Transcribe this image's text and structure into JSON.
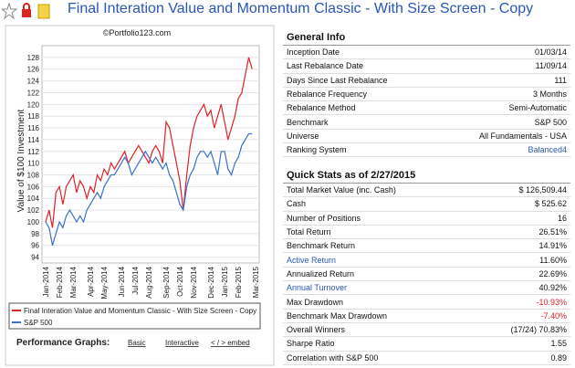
{
  "header": {
    "title": "Final Interation Value and Momentum Classic - With Size Screen - Copy"
  },
  "chart_data": {
    "type": "line",
    "credit": "©Portfolio123.com",
    "ylabel": "Value of $100 Investment",
    "categories": [
      "Jan-2014",
      null,
      null,
      null,
      "Feb-2014",
      null,
      null,
      null,
      "Mar-2014",
      null,
      null,
      null,
      null,
      "Apr-2014",
      null,
      null,
      null,
      "May-2014",
      null,
      null,
      null,
      null,
      "Jun-2014",
      null,
      null,
      null,
      "Jul-2014",
      null,
      null,
      null,
      "Aug-2014",
      null,
      null,
      null,
      null,
      "Sep-2014",
      null,
      null,
      null,
      "Oct-2014",
      null,
      null,
      null,
      "Nov-2014",
      null,
      null,
      null,
      null,
      "Dec-2014",
      null,
      null,
      null,
      "Jan-2015",
      null,
      null,
      null,
      "Feb-2015",
      null,
      null,
      null,
      null,
      "Mar-2015"
    ],
    "series": [
      {
        "name": "Final Interation Value and Momentum Classic - With Size Screen - Copy",
        "color": "#e0202a",
        "values": [
          100,
          102,
          99,
          105,
          106,
          103,
          106,
          107,
          108,
          105,
          107,
          106,
          104,
          106,
          105,
          108,
          107,
          109,
          108,
          110,
          109,
          110,
          111,
          112,
          110,
          111,
          112,
          113,
          112,
          111,
          110,
          112,
          113,
          112,
          110,
          117,
          116,
          113,
          110,
          107,
          102,
          108,
          113,
          116,
          118,
          119,
          120,
          118,
          119,
          116,
          118,
          120,
          117,
          114,
          116,
          118,
          121,
          122,
          125,
          128,
          126,
          null
        ]
      },
      {
        "name": "S&P 500",
        "color": "#3a6fcc",
        "values": [
          100,
          99,
          96,
          98,
          100,
          99,
          101,
          102,
          101,
          100,
          101,
          100,
          102,
          103,
          104,
          105,
          104,
          106,
          107,
          108,
          108,
          109,
          110,
          111,
          110,
          108,
          109,
          110,
          111,
          112,
          111,
          110,
          111,
          110,
          109,
          110,
          108,
          107,
          105,
          103,
          102,
          106,
          108,
          109,
          111,
          112,
          112,
          111,
          112,
          110,
          108,
          112,
          112,
          109,
          108,
          110,
          111,
          113,
          114,
          115,
          115,
          null
        ]
      }
    ],
    "ylim": [
      93,
      130
    ],
    "yticks": [
      94,
      96,
      98,
      100,
      102,
      104,
      106,
      108,
      110,
      112,
      114,
      116,
      118,
      120,
      122,
      124,
      126,
      128
    ],
    "grid": true
  },
  "performance": {
    "label": "Performance Graphs:",
    "links": [
      "Basic",
      "Interactive",
      "< / > embed"
    ]
  },
  "general_info": {
    "title": "General Info",
    "rows": [
      [
        "Inception Date",
        "01/03/14"
      ],
      [
        "Last Rebalance Date",
        "11/09/14"
      ],
      [
        "Days Since Last Rebalance",
        "111"
      ],
      [
        "Rebalance Frequency",
        "3 Months"
      ],
      [
        "Rebalance Method",
        "Semi-Automatic"
      ],
      [
        "Benchmark",
        "S&P 500"
      ],
      [
        "Universe",
        "All Fundamentals - USA"
      ],
      [
        "Ranking System",
        "Balanced4"
      ]
    ]
  },
  "quick_stats": {
    "title": "Quick Stats as of 2/27/2015",
    "rows": [
      [
        "Total Market Value (inc. Cash)",
        "$ 126,509.44"
      ],
      [
        "Cash",
        "$ 525.62"
      ],
      [
        "Number of Positions",
        "16"
      ],
      [
        "Total Return",
        "26.51%"
      ],
      [
        "Benchmark Return",
        "14.91%"
      ],
      [
        "Active Return",
        "11.60%"
      ],
      [
        "Annualized Return",
        "22.69%"
      ],
      [
        "Annual Turnover",
        "40.92%"
      ],
      [
        "Max Drawdown",
        "-10.93%"
      ],
      [
        "Benchmark Max Drawdown",
        "-7.40%"
      ],
      [
        "Overall Winners",
        "(17/24) 70.83%"
      ],
      [
        "Sharpe Ratio",
        "1.55"
      ],
      [
        "Correlation with S&P 500",
        "0.89"
      ]
    ]
  }
}
